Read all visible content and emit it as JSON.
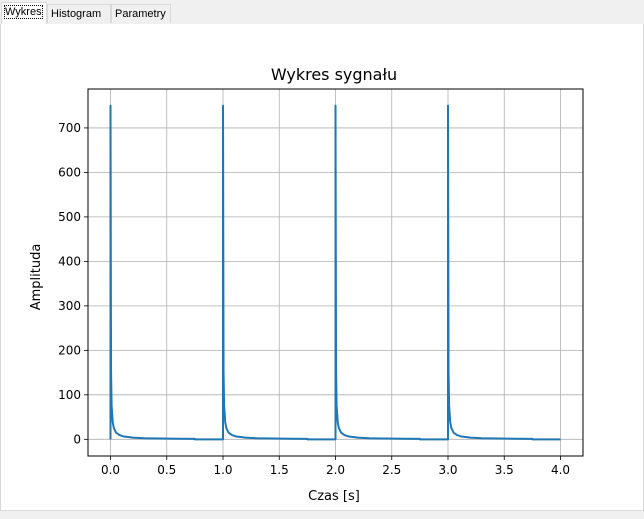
{
  "tabs": [
    {
      "label": "Wykres",
      "active": true
    },
    {
      "label": "Histogram",
      "active": false
    },
    {
      "label": "Parametry",
      "active": false
    }
  ],
  "chart_data": {
    "type": "line",
    "title": "Wykres sygnału",
    "xlabel": "Czas [s]",
    "ylabel": "Amplituda",
    "xlim": [
      -0.2,
      4.2
    ],
    "ylim": [
      -37.5,
      787.5
    ],
    "xticks": [
      0.0,
      0.5,
      1.0,
      1.5,
      2.0,
      2.5,
      3.0,
      3.5,
      4.0
    ],
    "xtick_labels": [
      "0.0",
      "0.5",
      "1.0",
      "1.5",
      "2.0",
      "2.5",
      "3.0",
      "3.5",
      "4.0"
    ],
    "yticks": [
      0,
      100,
      200,
      300,
      400,
      500,
      600,
      700
    ],
    "ytick_labels": [
      "0",
      "100",
      "200",
      "300",
      "400",
      "500",
      "600",
      "700"
    ],
    "grid": true,
    "color": "#1f77b4",
    "series": [
      {
        "x": [
          0.0,
          0.0,
          0.005,
          0.01,
          0.02,
          0.03,
          0.05,
          0.08,
          0.12,
          0.2,
          0.3,
          0.45,
          0.6,
          0.75,
          0.75,
          1.0,
          1.0,
          1.005,
          1.01,
          1.02,
          1.03,
          1.05,
          1.08,
          1.12,
          1.2,
          1.3,
          1.45,
          1.6,
          1.75,
          1.75,
          2.0,
          2.0,
          2.005,
          2.01,
          2.02,
          2.03,
          2.05,
          2.08,
          2.12,
          2.2,
          2.3,
          2.45,
          2.6,
          2.75,
          2.75,
          3.0,
          3.0,
          3.005,
          3.01,
          3.02,
          3.03,
          3.05,
          3.08,
          3.12,
          3.2,
          3.3,
          3.45,
          3.6,
          3.75,
          3.75,
          4.0
        ],
        "y": [
          0,
          750,
          150,
          75,
          38,
          25,
          15,
          9.5,
          6.3,
          3.8,
          2.5,
          1.7,
          1.25,
          1.0,
          0,
          0,
          750,
          150,
          75,
          38,
          25,
          15,
          9.5,
          6.3,
          3.8,
          2.5,
          1.7,
          1.25,
          1.0,
          0,
          0,
          750,
          150,
          75,
          38,
          25,
          15,
          9.5,
          6.3,
          3.8,
          2.5,
          1.7,
          1.25,
          1.0,
          0,
          0,
          750,
          150,
          75,
          38,
          25,
          15,
          9.5,
          6.3,
          3.8,
          2.5,
          1.7,
          1.25,
          1.0,
          0,
          0
        ]
      }
    ]
  }
}
